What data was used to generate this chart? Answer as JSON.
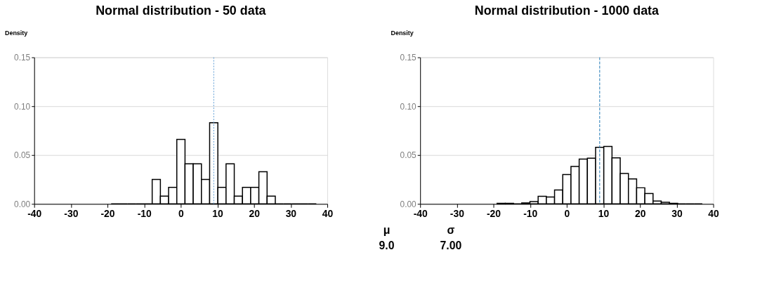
{
  "chart_data": [
    {
      "type": "histogram",
      "title": "Normal distribution - 50 data",
      "ylabel": "Density",
      "bins": [
        -19,
        -16.76,
        -14.52,
        -12.28,
        -10.04,
        -7.8,
        -5.56,
        -3.32,
        -1.08,
        1.16,
        3.4,
        5.64,
        7.88,
        10.12,
        12.36,
        14.6,
        16.84,
        19.08,
        21.32,
        23.56,
        25.8,
        28.04,
        30.28,
        32.52,
        34.76,
        37
      ],
      "values": [
        0,
        0,
        0,
        0,
        0,
        0.025,
        0.008,
        0.017,
        0.066,
        0.041,
        0.041,
        0.025,
        0.083,
        0.017,
        0.041,
        0.008,
        0.017,
        0.017,
        0.033,
        0.008,
        0,
        0,
        0,
        0,
        0
      ],
      "color": "#000000",
      "xlim": [
        -40,
        40
      ],
      "xticks": [
        -40,
        -30,
        -20,
        -10,
        0,
        10,
        20,
        30,
        40
      ],
      "ylim": [
        0,
        0.15
      ],
      "yticks": [
        {
          "value": 0,
          "label": "0.00"
        },
        {
          "value": 0.05,
          "label": "0.05"
        },
        {
          "value": 0.1,
          "label": "0.10"
        },
        {
          "value": 0.15,
          "label": "0.15"
        }
      ],
      "grid": "y",
      "ref_lines": [
        {
          "axis": "x",
          "value": 9,
          "color": "#5b9bd5",
          "line_style": "dotted"
        }
      ]
    },
    {
      "type": "histogram",
      "title": "Normal distribution - 1000 data",
      "ylabel": "Density",
      "bins": [
        -19,
        -16.76,
        -14.52,
        -12.28,
        -10.04,
        -7.8,
        -5.56,
        -3.32,
        -1.08,
        1.16,
        3.4,
        5.64,
        7.88,
        10.12,
        12.36,
        14.6,
        16.84,
        19.08,
        21.32,
        23.56,
        25.8,
        28.04,
        30.28,
        32.52,
        34.76,
        37
      ],
      "values": [
        0.0006,
        0.0006,
        0,
        0.001,
        0.0024,
        0.0078,
        0.0071,
        0.0143,
        0.03,
        0.0384,
        0.0459,
        0.0467,
        0.058,
        0.0588,
        0.0471,
        0.0312,
        0.0255,
        0.0165,
        0.0106,
        0.0029,
        0.0016,
        0.0006,
        0,
        0,
        0
      ],
      "color": "#000000",
      "xlim": [
        -40,
        40
      ],
      "xticks": [
        -40,
        -30,
        -20,
        -10,
        0,
        10,
        20,
        30,
        40
      ],
      "ylim": [
        0,
        0.15
      ],
      "yticks": [
        {
          "value": 0,
          "label": "0.00"
        },
        {
          "value": 0.05,
          "label": "0.05"
        },
        {
          "value": 0.1,
          "label": "0.10"
        },
        {
          "value": 0.15,
          "label": "0.15"
        }
      ],
      "grid": "y",
      "ref_lines": [
        {
          "axis": "x",
          "value": 9,
          "color": "#1f77b4",
          "line_style": "dashed"
        }
      ],
      "annotations": [
        "μ",
        "9.0",
        "σ",
        "7.00"
      ]
    }
  ]
}
